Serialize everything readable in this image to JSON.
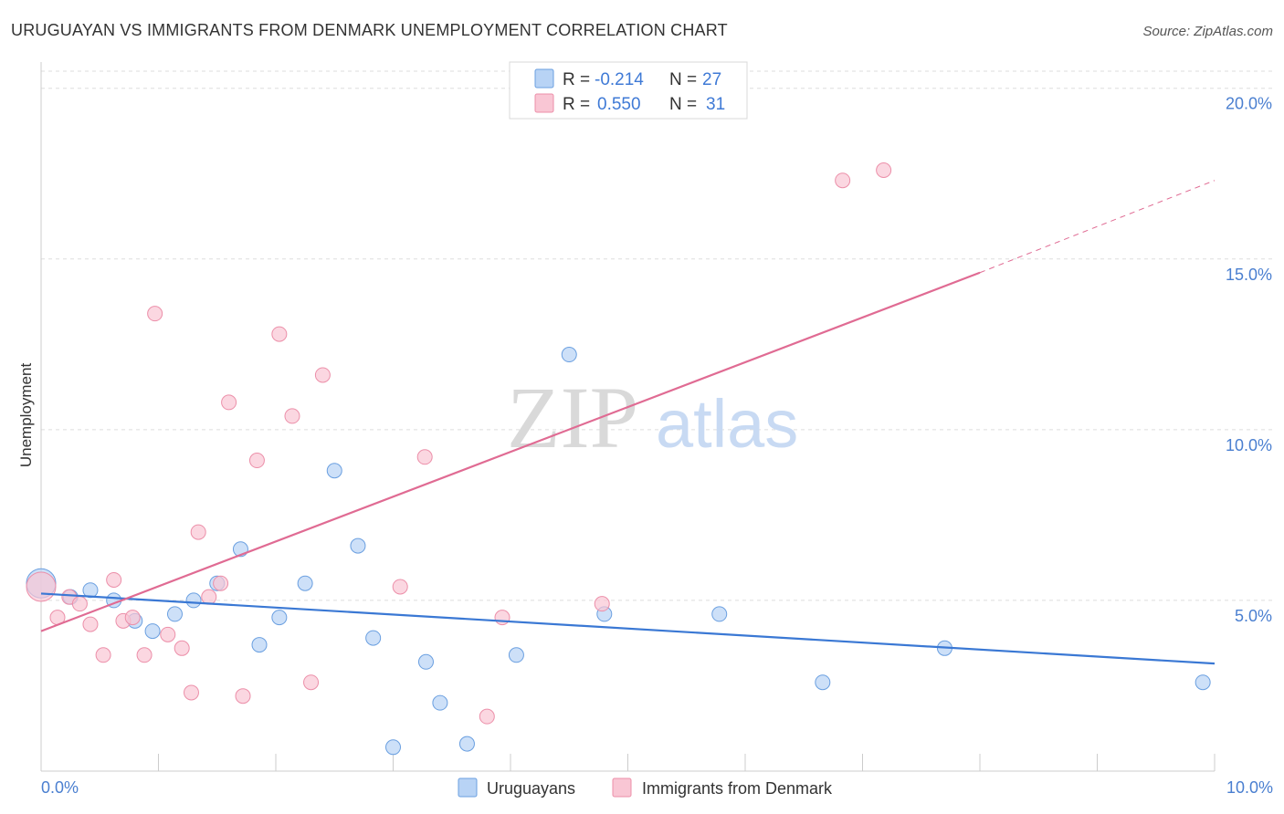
{
  "title": "URUGUAYAN VS IMMIGRANTS FROM DENMARK UNEMPLOYMENT CORRELATION CHART",
  "source": "Source: ZipAtlas.com",
  "watermark": {
    "zip": "ZIP",
    "atlas": "atlas"
  },
  "colors": {
    "blue_fill": "#b8d3f5",
    "blue_stroke": "#6a9fe0",
    "blue_line": "#3a78d4",
    "pink_fill": "#f9c6d4",
    "pink_stroke": "#ec8fa9",
    "pink_line": "#e06b93",
    "grid": "#dddddd",
    "tick_text": "#4a7fd0"
  },
  "legend": {
    "rows": [
      {
        "r_label": "R =",
        "r_value": "-0.214",
        "n_label": "N =",
        "n_value": "27"
      },
      {
        "r_label": "R =",
        "r_value": "0.550",
        "n_label": "N =",
        "n_value": "31"
      }
    ]
  },
  "bottom_legend": {
    "items": [
      {
        "label": "Uruguayans"
      },
      {
        "label": "Immigrants from Denmark"
      }
    ]
  },
  "chart_data": {
    "type": "scatter",
    "title": "URUGUAYAN VS IMMIGRANTS FROM DENMARK UNEMPLOYMENT CORRELATION CHART",
    "xlabel": "",
    "ylabel": "Unemployment",
    "xlim": [
      0,
      10
    ],
    "ylim": [
      0,
      20.5
    ],
    "x_tick_labels": [
      "0.0%",
      "10.0%"
    ],
    "y_ticks": [
      5,
      10,
      15,
      20
    ],
    "y_tick_labels": [
      "5.0%",
      "10.0%",
      "15.0%",
      "20.0%"
    ],
    "grid": true,
    "legend_placement": "top-center",
    "series": [
      {
        "name": "Uruguayans",
        "r": -0.214,
        "n": 27,
        "points": [
          {
            "x": 0.0,
            "y": 5.5,
            "big": true
          },
          {
            "x": 0.25,
            "y": 5.1
          },
          {
            "x": 0.42,
            "y": 5.3
          },
          {
            "x": 0.62,
            "y": 5.0
          },
          {
            "x": 0.8,
            "y": 4.4
          },
          {
            "x": 0.95,
            "y": 4.1
          },
          {
            "x": 1.14,
            "y": 4.6
          },
          {
            "x": 1.3,
            "y": 5.0
          },
          {
            "x": 1.5,
            "y": 5.5
          },
          {
            "x": 1.7,
            "y": 6.5
          },
          {
            "x": 1.86,
            "y": 3.7
          },
          {
            "x": 2.03,
            "y": 4.5
          },
          {
            "x": 2.25,
            "y": 5.5
          },
          {
            "x": 2.5,
            "y": 8.8
          },
          {
            "x": 2.7,
            "y": 6.6
          },
          {
            "x": 2.83,
            "y": 3.9
          },
          {
            "x": 3.0,
            "y": 0.7
          },
          {
            "x": 3.28,
            "y": 3.2
          },
          {
            "x": 3.4,
            "y": 2.0
          },
          {
            "x": 3.63,
            "y": 0.8
          },
          {
            "x": 4.05,
            "y": 3.4
          },
          {
            "x": 4.5,
            "y": 12.2
          },
          {
            "x": 4.8,
            "y": 4.6
          },
          {
            "x": 5.78,
            "y": 4.6
          },
          {
            "x": 6.66,
            "y": 2.6
          },
          {
            "x": 7.7,
            "y": 3.6
          },
          {
            "x": 9.9,
            "y": 2.6
          }
        ],
        "trend": {
          "x1": 0,
          "y1": 5.2,
          "x2": 10,
          "y2": 3.15
        }
      },
      {
        "name": "Immigrants from Denmark",
        "r": 0.55,
        "n": 31,
        "points": [
          {
            "x": 0.0,
            "y": 5.4,
            "big": true
          },
          {
            "x": 0.14,
            "y": 4.5
          },
          {
            "x": 0.24,
            "y": 5.1
          },
          {
            "x": 0.33,
            "y": 4.9
          },
          {
            "x": 0.42,
            "y": 4.3
          },
          {
            "x": 0.53,
            "y": 3.4
          },
          {
            "x": 0.62,
            "y": 5.6
          },
          {
            "x": 0.7,
            "y": 4.4
          },
          {
            "x": 0.78,
            "y": 4.5
          },
          {
            "x": 0.88,
            "y": 3.4
          },
          {
            "x": 0.97,
            "y": 13.4
          },
          {
            "x": 1.08,
            "y": 4.0
          },
          {
            "x": 1.2,
            "y": 3.6
          },
          {
            "x": 1.28,
            "y": 2.3
          },
          {
            "x": 1.34,
            "y": 7.0
          },
          {
            "x": 1.43,
            "y": 5.1
          },
          {
            "x": 1.53,
            "y": 5.5
          },
          {
            "x": 1.6,
            "y": 10.8
          },
          {
            "x": 1.72,
            "y": 2.2
          },
          {
            "x": 1.84,
            "y": 9.1
          },
          {
            "x": 2.03,
            "y": 12.8
          },
          {
            "x": 2.14,
            "y": 10.4
          },
          {
            "x": 2.3,
            "y": 2.6
          },
          {
            "x": 2.4,
            "y": 11.6
          },
          {
            "x": 3.06,
            "y": 5.4
          },
          {
            "x": 3.27,
            "y": 9.2
          },
          {
            "x": 3.8,
            "y": 1.6
          },
          {
            "x": 3.93,
            "y": 4.5
          },
          {
            "x": 4.78,
            "y": 4.9
          },
          {
            "x": 6.83,
            "y": 17.3
          },
          {
            "x": 7.18,
            "y": 17.6
          }
        ],
        "trend": {
          "x1": 0,
          "y1": 4.1,
          "x2": 8.0,
          "y2": 14.6
        },
        "trend_dashed": {
          "x1": 8.0,
          "y1": 14.6,
          "x2": 10,
          "y2": 17.3
        }
      }
    ]
  }
}
